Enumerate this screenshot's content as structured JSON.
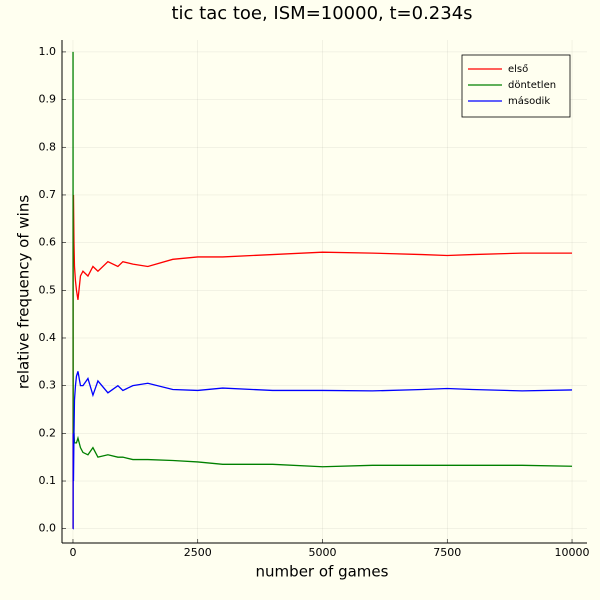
{
  "chart_data": {
    "type": "line",
    "title": "tic tac toe, ISM=10000, t=0.234s",
    "x_label": "number of games",
    "y_label": "relative frequency of wins",
    "x": [
      1,
      2,
      3,
      5,
      10,
      20,
      30,
      50,
      70,
      100,
      150,
      200,
      300,
      400,
      500,
      700,
      900,
      1000,
      1200,
      1500,
      2000,
      2500,
      3000,
      4000,
      5000,
      6000,
      7000,
      7500,
      8000,
      9000,
      10000
    ],
    "series": [
      {
        "name": "első",
        "color": "#ff0000",
        "values": [
          0,
          0.5,
          0.67,
          0.6,
          0.7,
          0.6,
          0.55,
          0.52,
          0.5,
          0.48,
          0.53,
          0.54,
          0.53,
          0.55,
          0.54,
          0.56,
          0.55,
          0.56,
          0.555,
          0.55,
          0.565,
          0.57,
          0.57,
          0.575,
          0.58,
          0.578,
          0.575,
          0.573,
          0.575,
          0.578,
          0.578
        ]
      },
      {
        "name": "döntetlen",
        "color": "#008000",
        "values": [
          1,
          0.5,
          0.33,
          0.2,
          0.2,
          0.2,
          0.18,
          0.18,
          0.18,
          0.19,
          0.17,
          0.16,
          0.155,
          0.17,
          0.15,
          0.155,
          0.15,
          0.15,
          0.145,
          0.145,
          0.143,
          0.14,
          0.135,
          0.135,
          0.13,
          0.133,
          0.133,
          0.133,
          0.133,
          0.133,
          0.131
        ]
      },
      {
        "name": "második",
        "color": "#0000ff",
        "values": [
          0,
          0,
          0,
          0.2,
          0.1,
          0.2,
          0.27,
          0.3,
          0.32,
          0.33,
          0.3,
          0.3,
          0.315,
          0.28,
          0.31,
          0.285,
          0.3,
          0.29,
          0.3,
          0.305,
          0.292,
          0.29,
          0.295,
          0.29,
          0.29,
          0.289,
          0.292,
          0.294,
          0.292,
          0.289,
          0.291
        ]
      }
    ],
    "xlim": [
      -220,
      10300
    ],
    "ylim": [
      -0.03,
      1.025
    ],
    "xticks": [
      0,
      2500,
      5000,
      7500,
      10000
    ],
    "yticks": [
      {
        "value": 0,
        "label": "0.0"
      },
      0.1,
      0.2,
      0.3,
      0.4,
      0.5,
      0.6,
      0.7,
      0.8,
      0.9,
      {
        "value": 1,
        "label": "1.0"
      }
    ],
    "grid": true,
    "legend": "top-right"
  }
}
